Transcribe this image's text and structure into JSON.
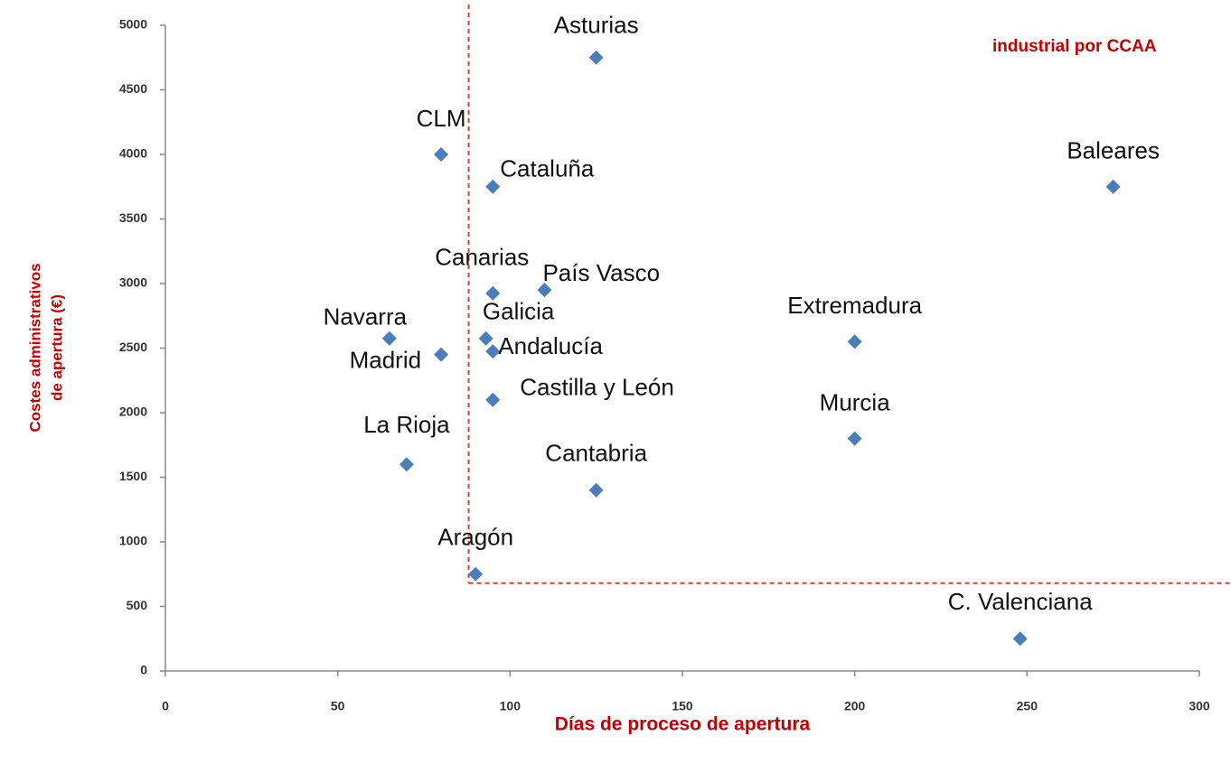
{
  "chart_data": {
    "type": "scatter",
    "title": "industrial por CCAA",
    "xlabel": "Días de proceso de apertura",
    "ylabel": [
      "Costes administrativos",
      "de apertura (€)"
    ],
    "xlim": [
      0,
      300
    ],
    "ylim": [
      0,
      5000
    ],
    "xticks": [
      0,
      50,
      100,
      150,
      200,
      250,
      300
    ],
    "yticks": [
      0,
      500,
      1000,
      1500,
      2000,
      2500,
      3000,
      3500,
      4000,
      4500,
      5000
    ],
    "color": "#4a7ebb",
    "reference_lines": {
      "x": 88,
      "y": 680,
      "color": "#e03c31"
    },
    "labels": [
      "Asturias",
      "CLM",
      "Cataluña",
      "Baleares",
      "Canarias",
      "País Vasco",
      "Extremadura",
      "Navarra",
      "Galicia",
      "Andalucía",
      "Madrid",
      "Castilla y León",
      "Murcia",
      "La Rioja",
      "Cantabria",
      "Aragón",
      "C. Valenciana"
    ],
    "x": [
      125,
      80,
      95,
      275,
      95,
      110,
      200,
      65,
      93,
      95,
      80,
      95,
      200,
      70,
      125,
      90,
      248
    ],
    "values": [
      4750,
      4000,
      3750,
      3750,
      2925,
      2950,
      2550,
      2575,
      2575,
      2475,
      2450,
      2100,
      1800,
      1600,
      1400,
      750,
      250
    ]
  }
}
